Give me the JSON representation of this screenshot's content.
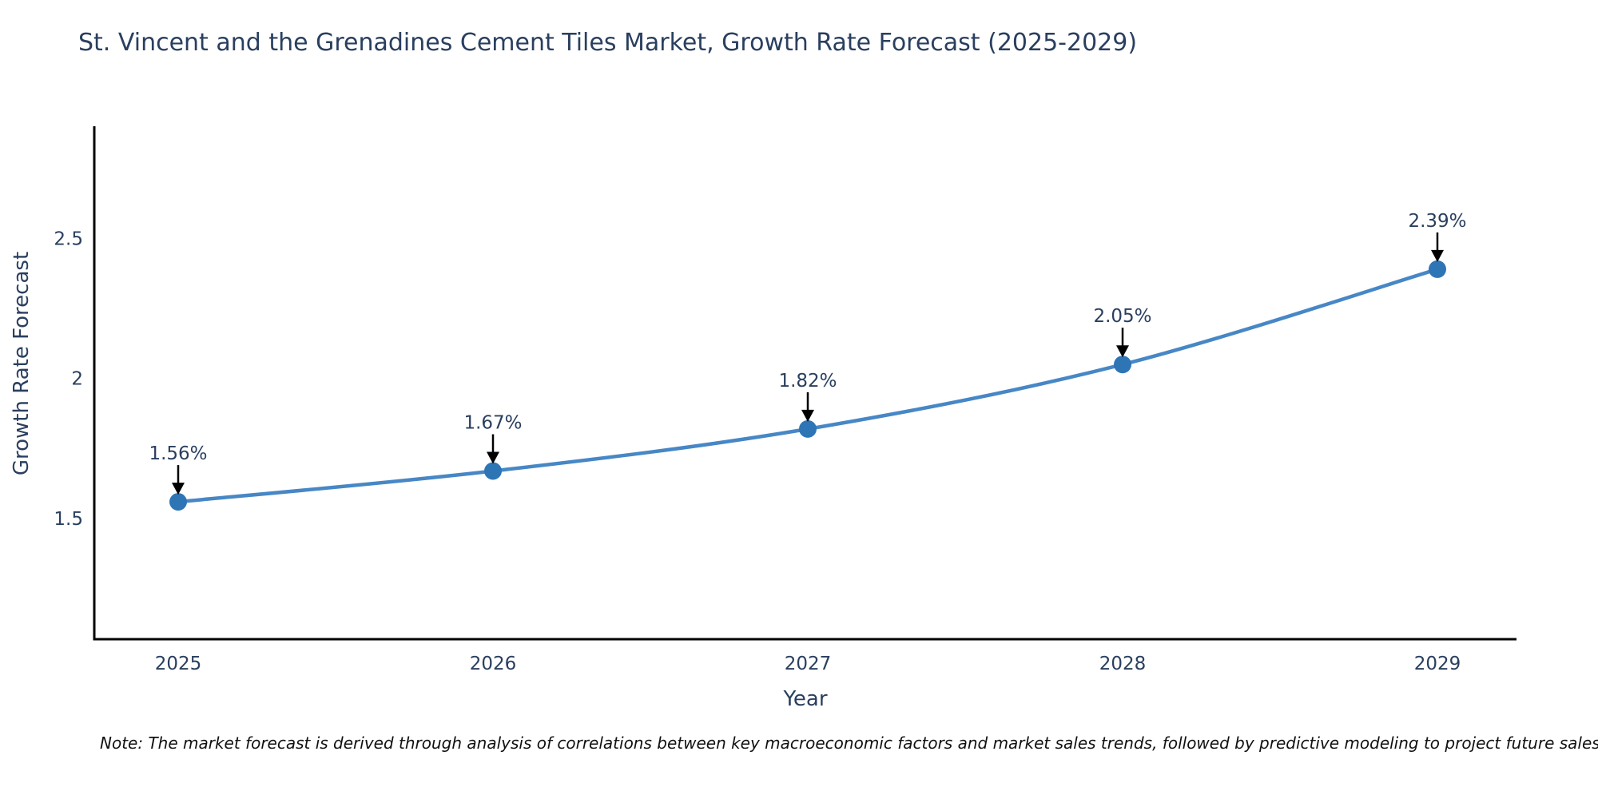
{
  "note": {
    "text": "Note: The market forecast is derived through analysis of correlations between key macroeconomic factors and market sales trends, followed by predictive modeling to project future sales"
  },
  "colors": {
    "text": "#2a3f5f",
    "axis": "#000000",
    "line": "#4787c5",
    "marker": "#2e75b6",
    "arrow": "#000000"
  },
  "chart_data": {
    "type": "line",
    "title": "St. Vincent and the Grenadines Cement Tiles Market, Growth Rate Forecast (2025-2029)",
    "xlabel": "Year",
    "ylabel": "Growth Rate Forecast",
    "categories": [
      "2025",
      "2026",
      "2027",
      "2028",
      "2029"
    ],
    "series": [
      {
        "name": "Growth Rate Forecast",
        "values": [
          1.56,
          1.67,
          1.82,
          2.05,
          2.39
        ]
      }
    ],
    "point_labels": [
      "1.56%",
      "1.67%",
      "1.82%",
      "2.05%",
      "2.39%"
    ],
    "y_ticks": [
      1.5,
      2,
      2.5
    ],
    "ylim": [
      1.07,
      2.9
    ],
    "grid": false,
    "legend": false,
    "curve": "spline",
    "annotation_style": "value label above each point with a downward black arrow"
  }
}
